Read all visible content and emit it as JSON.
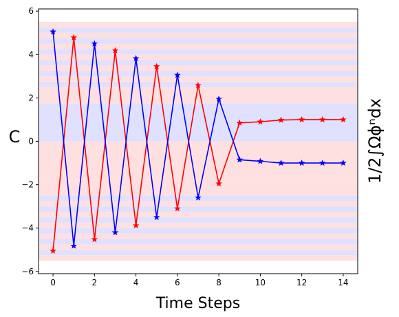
{
  "chart_data": {
    "type": "line",
    "xlabel": "Time Steps",
    "ylabel": "C",
    "ylabel_right": "1/2∫Ωϕⁿdx",
    "xlim": [
      -0.7,
      14.7
    ],
    "ylim": [
      -6.1,
      6.1
    ],
    "xticks": [
      0,
      2,
      4,
      6,
      8,
      10,
      12,
      14
    ],
    "yticks": [
      -6,
      -4,
      -2,
      0,
      2,
      4,
      6
    ],
    "x": [
      0,
      1,
      2,
      3,
      4,
      5,
      6,
      7,
      8,
      9,
      10,
      11,
      12,
      13,
      14
    ],
    "series": [
      {
        "color": "#ff0000",
        "marker": "star",
        "values": [
          -5.05,
          4.78,
          -4.52,
          4.18,
          -3.88,
          3.45,
          -3.1,
          2.58,
          -1.95,
          0.85,
          0.9,
          0.98,
          1.0,
          1.0,
          1.0
        ]
      },
      {
        "color": "#0000ff",
        "marker": "star",
        "values": [
          5.05,
          -4.82,
          4.5,
          -4.2,
          3.82,
          -3.5,
          3.05,
          -2.6,
          1.95,
          -0.85,
          -0.92,
          -1.0,
          -1.0,
          -1.0,
          -1.0
        ]
      }
    ],
    "background_bands": {
      "colors": [
        "#ffe0e0",
        "#e0e0ff"
      ],
      "range": [
        -5.5,
        5.5
      ],
      "boundaries": [
        -5.5,
        -5.25,
        -5.0,
        -4.75,
        -4.5,
        -4.25,
        -4.0,
        -3.75,
        -3.5,
        -3.25,
        -3.0,
        -2.75,
        -2.5,
        -1.75,
        -1.75,
        0.0,
        1.75,
        2.5,
        2.75,
        3.0,
        3.25,
        3.5,
        3.75,
        4.0,
        4.25,
        4.5,
        4.75,
        5.0,
        5.25,
        5.5
      ]
    },
    "grid": false,
    "legend": "none"
  }
}
